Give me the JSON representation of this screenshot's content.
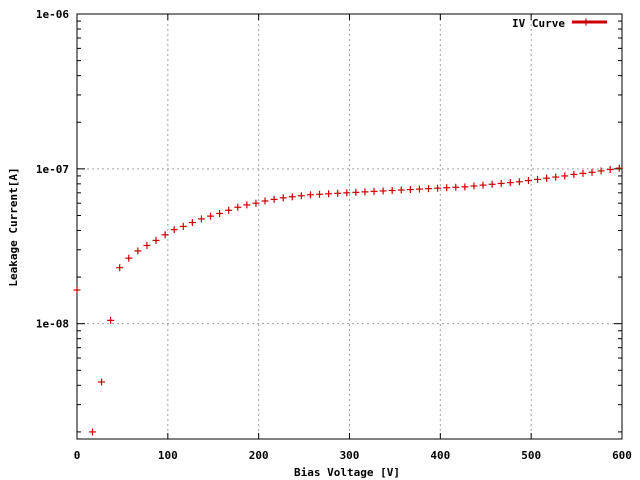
{
  "chart_data": {
    "type": "scatter",
    "xlabel": "Bias Voltage [V]",
    "ylabel": "Leakage Current[A]",
    "xlim": [
      0,
      600
    ],
    "ylim": [
      1.8e-09,
      1e-06
    ],
    "y_scale": "log",
    "grid": true,
    "legend_position": "top-right",
    "x_ticks": [
      0,
      100,
      200,
      300,
      400,
      500,
      600
    ],
    "x_tick_labels": [
      "0",
      "100",
      "200",
      "300",
      "400",
      "500",
      "600"
    ],
    "y_ticks": [
      1e-08,
      1e-07,
      1e-06
    ],
    "y_tick_labels": [
      "1e-08",
      "1e-07",
      "1e-06"
    ],
    "series": [
      {
        "name": "IV Curve",
        "color": "#cc0000",
        "x": [
          0,
          17,
          27,
          37,
          47,
          57,
          67,
          77,
          87,
          97,
          107,
          117,
          127,
          137,
          147,
          157,
          167,
          177,
          187,
          197,
          207,
          217,
          227,
          237,
          247,
          257,
          267,
          277,
          287,
          297,
          307,
          317,
          327,
          337,
          347,
          357,
          367,
          377,
          387,
          397,
          407,
          417,
          427,
          437,
          447,
          457,
          467,
          477,
          487,
          497,
          507,
          517,
          527,
          537,
          547,
          557,
          567,
          577,
          587,
          597
        ],
        "y": [
          1.65e-08,
          2e-09,
          4.2e-09,
          1.05e-08,
          2.3e-08,
          2.65e-08,
          2.95e-08,
          3.2e-08,
          3.45e-08,
          3.75e-08,
          4.05e-08,
          4.25e-08,
          4.5e-08,
          4.75e-08,
          4.95e-08,
          5.15e-08,
          5.4e-08,
          5.65e-08,
          5.85e-08,
          6e-08,
          6.2e-08,
          6.35e-08,
          6.5e-08,
          6.6e-08,
          6.7e-08,
          6.8e-08,
          6.85e-08,
          6.9e-08,
          6.95e-08,
          7e-08,
          7.05e-08,
          7.1e-08,
          7.15e-08,
          7.2e-08,
          7.25e-08,
          7.3e-08,
          7.35e-08,
          7.4e-08,
          7.45e-08,
          7.5e-08,
          7.55e-08,
          7.6e-08,
          7.65e-08,
          7.75e-08,
          7.85e-08,
          7.95e-08,
          8.05e-08,
          8.15e-08,
          8.25e-08,
          8.4e-08,
          8.55e-08,
          8.7e-08,
          8.85e-08,
          9e-08,
          9.2e-08,
          9.35e-08,
          9.5e-08,
          9.7e-08,
          9.9e-08,
          1.01e-07
        ]
      }
    ]
  }
}
